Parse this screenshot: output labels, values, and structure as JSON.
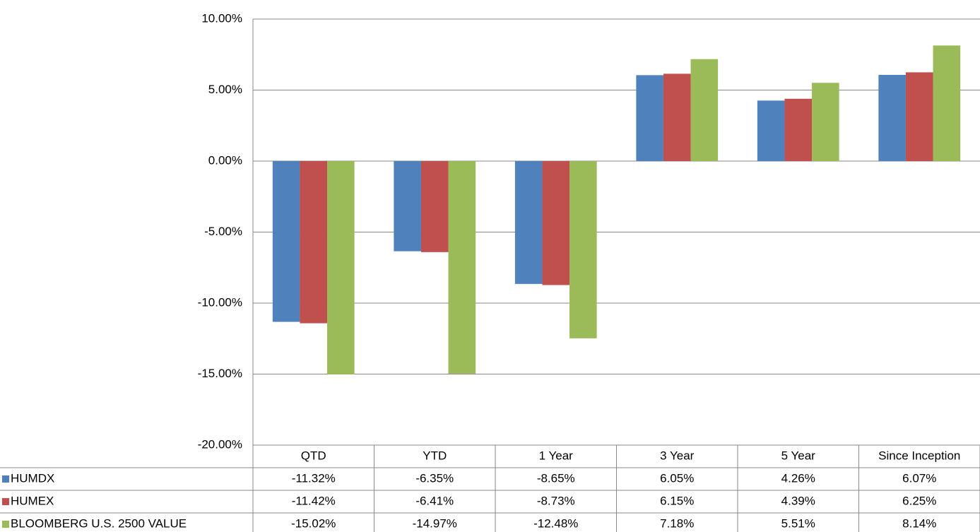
{
  "chart_data": {
    "type": "bar",
    "categories": [
      "QTD",
      "YTD",
      "1 Year",
      "3 Year",
      "5 Year",
      "Since Inception"
    ],
    "series": [
      {
        "name": "HUMDX",
        "color": "#4f81bd",
        "values": [
          -11.32,
          -6.35,
          -8.65,
          6.05,
          4.26,
          6.07
        ],
        "value_labels": [
          "-11.32%",
          "-6.35%",
          "-8.65%",
          "6.05%",
          "4.26%",
          "6.07%"
        ]
      },
      {
        "name": "HUMEX",
        "color": "#c0504d",
        "values": [
          -11.42,
          -6.41,
          -8.73,
          6.15,
          4.39,
          6.25
        ],
        "value_labels": [
          "-11.42%",
          "-6.41%",
          "-8.73%",
          "6.15%",
          "4.39%",
          "6.25%"
        ]
      },
      {
        "name": "BLOOMBERG U.S. 2500 VALUE",
        "color": "#9bbb59",
        "values": [
          -15.02,
          -14.97,
          -12.48,
          7.18,
          5.51,
          8.14
        ],
        "value_labels": [
          "-15.02%",
          "-14.97%",
          "-12.48%",
          "7.18%",
          "5.51%",
          "8.14%"
        ]
      }
    ],
    "ylim": [
      -20,
      10
    ],
    "yticks": [
      {
        "value": -20,
        "label": "-20.00%"
      },
      {
        "value": -15,
        "label": "-15.00%"
      },
      {
        "value": -10,
        "label": "-10.00%"
      },
      {
        "value": -5,
        "label": "-5.00%"
      },
      {
        "value": 0,
        "label": "0.00%"
      },
      {
        "value": 5,
        "label": "5.00%"
      },
      {
        "value": 10,
        "label": "10.00%"
      }
    ],
    "grid": true
  }
}
